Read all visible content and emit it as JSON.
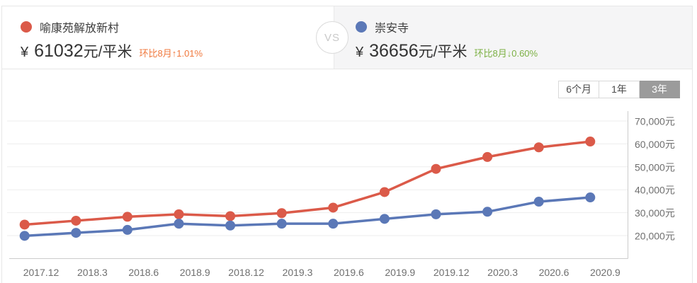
{
  "header": {
    "left": {
      "name": "喻康苑解放新村",
      "currency": "¥",
      "price": "61032",
      "unit": "元/平米",
      "change": "环比8月↑1.01%",
      "change_color": "#f0783c"
    },
    "vs_label": "VS",
    "right": {
      "name": "崇安寺",
      "currency": "¥",
      "price": "36656",
      "unit": "元/平米",
      "change": "环比8月↓0.60%",
      "change_color": "#7cb043"
    }
  },
  "tabs": [
    {
      "id": "6m",
      "label": "6个月",
      "selected": false
    },
    {
      "id": "1y",
      "label": "1年",
      "selected": false
    },
    {
      "id": "3y",
      "label": "3年",
      "selected": true
    }
  ],
  "chart_data": {
    "type": "line",
    "x": [
      "2017.12",
      "2018.3",
      "2018.6",
      "2018.9",
      "2018.12",
      "2019.3",
      "2019.6",
      "2019.9",
      "2019.12",
      "2020.3",
      "2020.6",
      "2020.9"
    ],
    "series": [
      {
        "name": "喻康苑解放新村",
        "color": "#db5a49",
        "values": [
          24800,
          26500,
          28200,
          29300,
          28500,
          29800,
          32200,
          39000,
          49100,
          54300,
          58500,
          61032
        ]
      },
      {
        "name": "崇安寺",
        "color": "#5b78b7",
        "values": [
          19900,
          21200,
          22500,
          25200,
          24400,
          25200,
          25200,
          27300,
          29300,
          30400,
          34800,
          36656
        ]
      }
    ],
    "y_ticks": [
      {
        "value": 70000,
        "label": "70,000元"
      },
      {
        "value": 60000,
        "label": "60,000元"
      },
      {
        "value": 50000,
        "label": "50,000元"
      },
      {
        "value": 40000,
        "label": "40,000元"
      },
      {
        "value": 30000,
        "label": "30,000元"
      },
      {
        "value": 20000,
        "label": "20,000元"
      }
    ],
    "ylim": [
      10000,
      76000
    ],
    "yaxis_side": "right",
    "grid": "horizontal",
    "legend_position": "header"
  }
}
